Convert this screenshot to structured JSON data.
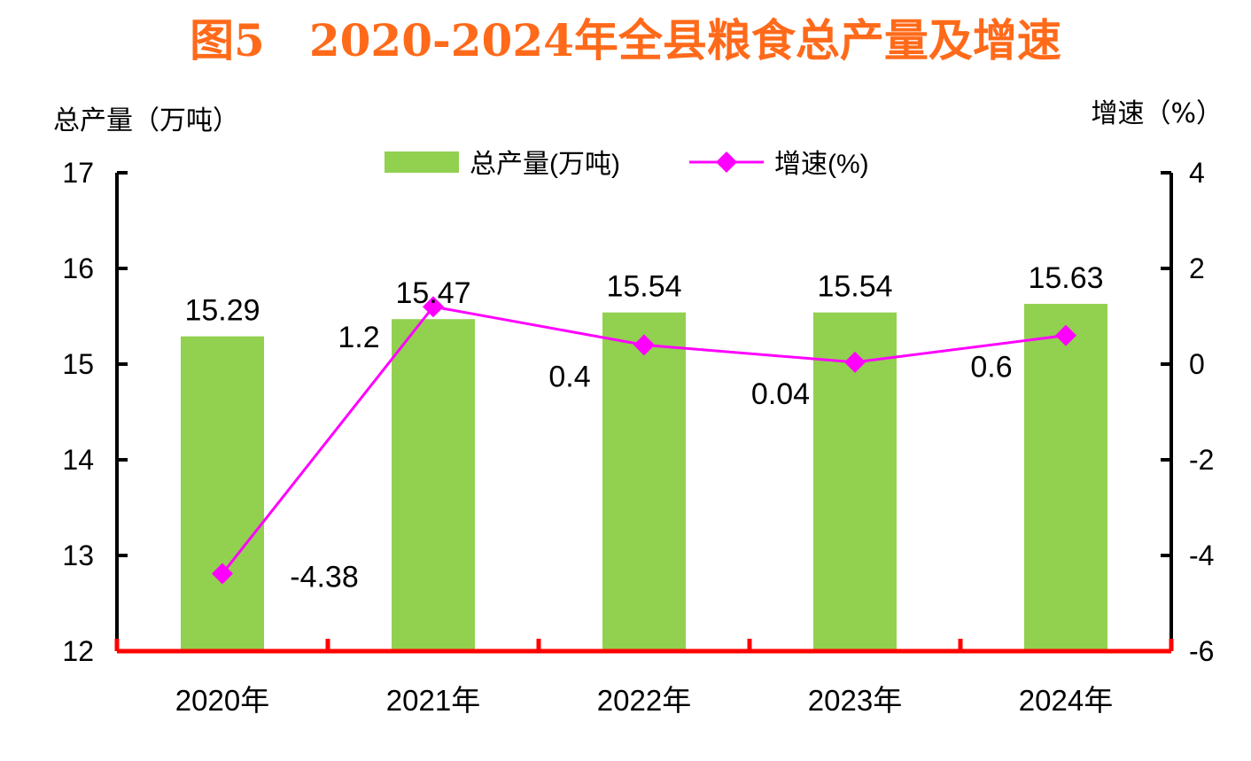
{
  "colors": {
    "title": "#FF6A1A",
    "bar": "#92D050",
    "line": "#FF00FF",
    "axis": "#000000",
    "baseline": "#FF0000"
  },
  "chart_data": {
    "type": "bar",
    "title": "图5　2020-2024年全县粮食总产量及增速",
    "categories": [
      "2020年",
      "2021年",
      "2022年",
      "2023年",
      "2024年"
    ],
    "ylabel_left": "总产量（万吨）",
    "ylabel_right": "增速（%）",
    "ylim_left": [
      12,
      17
    ],
    "ylim_right": [
      -6,
      4
    ],
    "yticks_left": [
      "12",
      "13",
      "14",
      "15",
      "16",
      "17"
    ],
    "yticks_right": [
      "-6",
      "-4",
      "-2",
      "0",
      "2",
      "4"
    ],
    "legend_position": "top-center",
    "grid": false,
    "series": [
      {
        "name": "总产量(万吨)",
        "type": "bar",
        "axis": "left",
        "values": [
          15.29,
          15.47,
          15.54,
          15.54,
          15.63
        ],
        "labels": [
          "15.29",
          "15.47",
          "15.54",
          "15.54",
          "15.63"
        ]
      },
      {
        "name": "增速(%)",
        "type": "line",
        "axis": "right",
        "marker": "diamond",
        "values": [
          -4.38,
          1.2,
          0.4,
          0.04,
          0.6
        ],
        "labels": [
          "-4.38",
          "1.2",
          "0.4",
          "0.04",
          "0.6"
        ]
      }
    ]
  }
}
